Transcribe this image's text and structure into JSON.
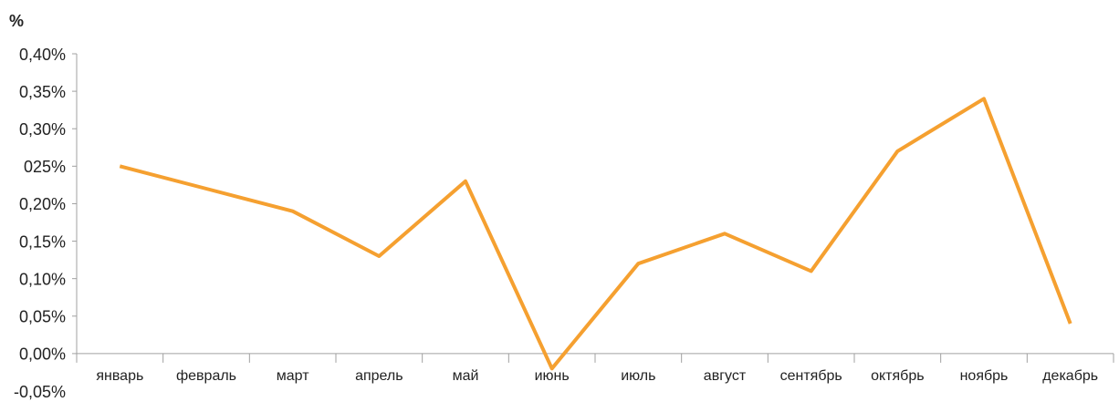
{
  "chart_data": {
    "type": "line",
    "y_label": "%",
    "categories": [
      "январь",
      "февраль",
      "март",
      "апрель",
      "май",
      "июнь",
      "июль",
      "август",
      "сентябрь",
      "октябрь",
      "ноябрь",
      "декабрь"
    ],
    "values": [
      0.25,
      0.22,
      0.19,
      0.13,
      0.23,
      -0.02,
      0.12,
      0.16,
      0.11,
      0.27,
      0.34,
      0.04
    ],
    "color": "#f5a030",
    "ylim": [
      -0.05,
      0.4
    ],
    "yticks": [
      {
        "value": 0.4,
        "label": "0,40%"
      },
      {
        "value": 0.35,
        "label": "0,35%"
      },
      {
        "value": 0.3,
        "label": "0,30%"
      },
      {
        "value": 0.25,
        "label": "025%"
      },
      {
        "value": 0.2,
        "label": "0,20%"
      },
      {
        "value": 0.15,
        "label": "0,15%"
      },
      {
        "value": 0.1,
        "label": "0,10%"
      },
      {
        "value": 0.05,
        "label": "0,05%"
      },
      {
        "value": 0,
        "label": "0,00%"
      },
      {
        "value": -0.05,
        "label": "-0,05%"
      }
    ],
    "grid": false
  }
}
